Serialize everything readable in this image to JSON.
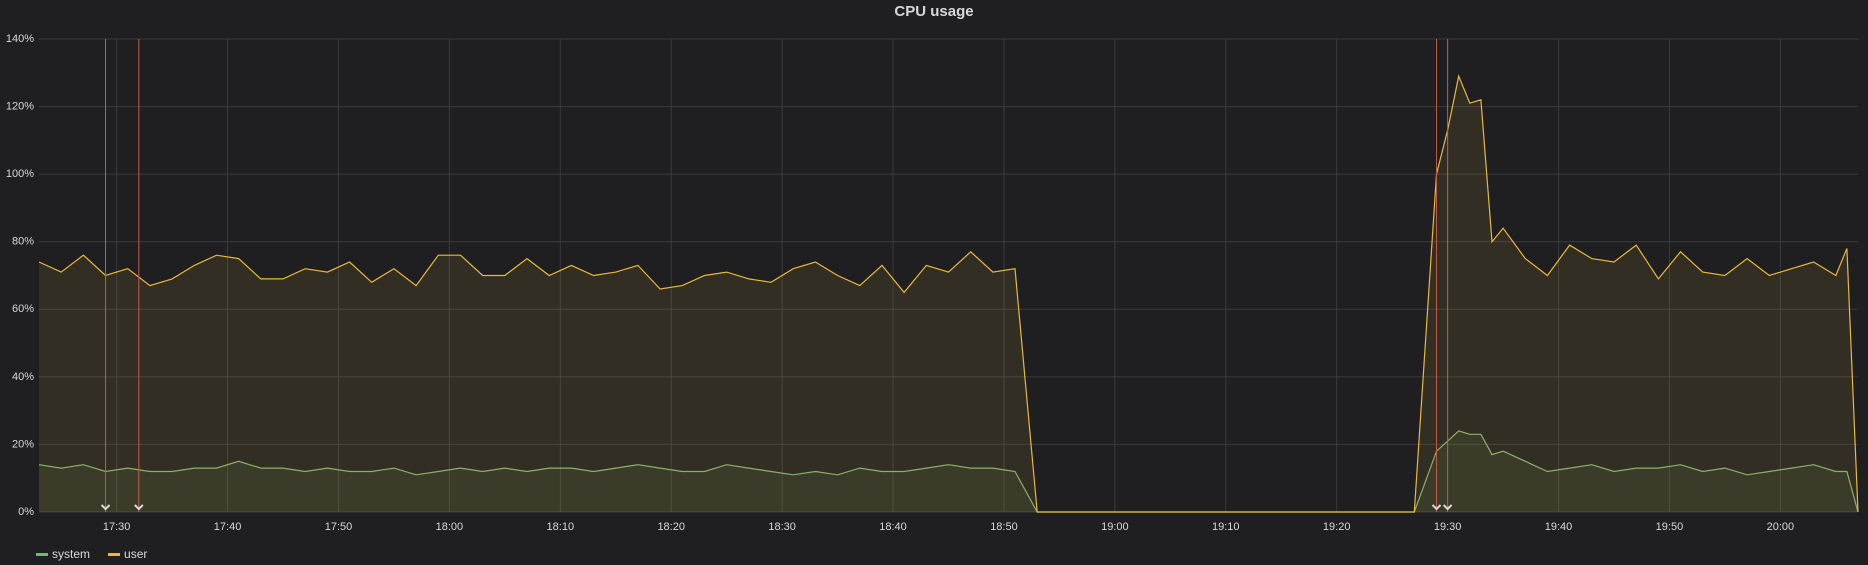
{
  "chart_data": {
    "type": "line",
    "title": "CPU usage",
    "x": [
      "17:23",
      "17:25",
      "17:27",
      "17:29",
      "17:31",
      "17:33",
      "17:35",
      "17:37",
      "17:39",
      "17:41",
      "17:43",
      "17:45",
      "17:47",
      "17:49",
      "17:51",
      "17:53",
      "17:55",
      "17:57",
      "17:59",
      "18:01",
      "18:03",
      "18:05",
      "18:07",
      "18:09",
      "18:11",
      "18:13",
      "18:15",
      "18:17",
      "18:19",
      "18:21",
      "18:23",
      "18:25",
      "18:27",
      "18:29",
      "18:31",
      "18:33",
      "18:35",
      "18:37",
      "18:39",
      "18:41",
      "18:43",
      "18:45",
      "18:47",
      "18:49",
      "18:51",
      "18:53",
      "19:27",
      "19:29",
      "19:30",
      "19:31",
      "19:32",
      "19:33",
      "19:34",
      "19:35",
      "19:37",
      "19:39",
      "19:41",
      "19:43",
      "19:45",
      "19:47",
      "19:49",
      "19:51",
      "19:53",
      "19:55",
      "19:57",
      "19:59",
      "20:01",
      "20:03",
      "20:05",
      "20:06",
      "20:07"
    ],
    "series": [
      {
        "name": "system",
        "color": "#7eb26d",
        "values": [
          14,
          13,
          14,
          12,
          13,
          12,
          12,
          13,
          13,
          15,
          13,
          13,
          12,
          13,
          12,
          12,
          13,
          11,
          12,
          13,
          12,
          13,
          12,
          13,
          13,
          12,
          13,
          14,
          13,
          12,
          12,
          14,
          13,
          12,
          11,
          12,
          11,
          13,
          12,
          12,
          13,
          14,
          13,
          13,
          12,
          0,
          0,
          18,
          21,
          24,
          23,
          23,
          17,
          18,
          15,
          12,
          13,
          14,
          12,
          13,
          13,
          14,
          12,
          13,
          11,
          12,
          13,
          14,
          12,
          12,
          0
        ]
      },
      {
        "name": "user",
        "color": "#eab839",
        "values": [
          74,
          71,
          76,
          70,
          72,
          67,
          69,
          73,
          76,
          75,
          69,
          69,
          72,
          71,
          74,
          68,
          72,
          67,
          76,
          76,
          70,
          70,
          75,
          70,
          73,
          70,
          71,
          73,
          66,
          67,
          70,
          71,
          69,
          68,
          72,
          74,
          70,
          67,
          73,
          65,
          73,
          71,
          77,
          71,
          72,
          0,
          0,
          100,
          113,
          129,
          121,
          122,
          80,
          84,
          75,
          70,
          79,
          75,
          74,
          79,
          69,
          77,
          71,
          70,
          75,
          70,
          72,
          74,
          70,
          78,
          0
        ]
      }
    ],
    "annotations": [
      "17:29",
      "17:32",
      "19:29",
      "19:30"
    ],
    "annotation_color": "#c15c4a",
    "xlim": [
      "17:23",
      "20:07"
    ],
    "xticks": [
      "17:30",
      "17:40",
      "17:50",
      "18:00",
      "18:10",
      "18:20",
      "18:30",
      "18:40",
      "18:50",
      "19:00",
      "19:10",
      "19:20",
      "19:30",
      "19:40",
      "19:50",
      "20:00"
    ],
    "ylim": [
      0,
      140
    ],
    "yticks": [
      {
        "value": 0,
        "label": "0%"
      },
      {
        "value": 20,
        "label": "20%"
      },
      {
        "value": 40,
        "label": "40%"
      },
      {
        "value": 60,
        "label": "60%"
      },
      {
        "value": 80,
        "label": "80%"
      },
      {
        "value": 100,
        "label": "100%"
      },
      {
        "value": 120,
        "label": "120%"
      },
      {
        "value": 140,
        "label": "140%"
      }
    ],
    "grid": true
  }
}
